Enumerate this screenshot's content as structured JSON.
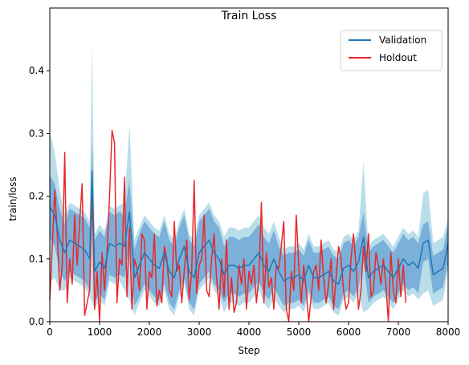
{
  "chart_data": {
    "type": "line",
    "title": "Train Loss",
    "xlabel": "Step",
    "ylabel": "train/loss",
    "xlim": [
      0,
      8000
    ],
    "ylim": [
      0,
      0.5
    ],
    "xticks": [
      0,
      1000,
      2000,
      3000,
      4000,
      5000,
      6000,
      7000,
      8000
    ],
    "yticks": [
      0.0,
      0.1,
      0.2,
      0.3,
      0.4
    ],
    "ytick_labels": [
      "0.0",
      "0.1",
      "0.2",
      "0.3",
      "0.4"
    ],
    "grid": false,
    "legend_position": "top-right",
    "colors": {
      "validation": "#1f77b4",
      "holdout": "#e8282b",
      "band_inner": "#6fa8d6",
      "band_outer": "#add8e6"
    },
    "series": [
      {
        "name": "Validation",
        "x": [
          0,
          100,
          200,
          300,
          400,
          500,
          600,
          700,
          800,
          850,
          900,
          1000,
          1100,
          1200,
          1300,
          1400,
          1500,
          1600,
          1700,
          1800,
          1900,
          2000,
          2100,
          2200,
          2300,
          2400,
          2500,
          2600,
          2700,
          2800,
          2900,
          3000,
          3100,
          3200,
          3300,
          3400,
          3500,
          3600,
          3700,
          3800,
          3900,
          4000,
          4100,
          4200,
          4300,
          4400,
          4500,
          4600,
          4700,
          4800,
          4900,
          5000,
          5100,
          5200,
          5300,
          5400,
          5500,
          5600,
          5700,
          5800,
          5900,
          6000,
          6100,
          6200,
          6300,
          6400,
          6500,
          6600,
          6700,
          6800,
          6900,
          7000,
          7100,
          7200,
          7300,
          7400,
          7500,
          7600,
          7700,
          7800,
          7900,
          8000
        ],
        "y": [
          0.183,
          0.17,
          0.13,
          0.11,
          0.13,
          0.125,
          0.12,
          0.115,
          0.1,
          0.24,
          0.08,
          0.095,
          0.085,
          0.125,
          0.12,
          0.125,
          0.12,
          0.175,
          0.07,
          0.09,
          0.11,
          0.1,
          0.09,
          0.085,
          0.11,
          0.08,
          0.07,
          0.1,
          0.12,
          0.08,
          0.07,
          0.11,
          0.12,
          0.13,
          0.11,
          0.1,
          0.075,
          0.09,
          0.09,
          0.085,
          0.09,
          0.09,
          0.1,
          0.11,
          0.09,
          0.08,
          0.1,
          0.08,
          0.065,
          0.07,
          0.07,
          0.075,
          0.065,
          0.09,
          0.07,
          0.07,
          0.075,
          0.08,
          0.065,
          0.06,
          0.085,
          0.09,
          0.08,
          0.095,
          0.135,
          0.07,
          0.08,
          0.085,
          0.09,
          0.08,
          0.07,
          0.085,
          0.1,
          0.09,
          0.095,
          0.085,
          0.125,
          0.13,
          0.075,
          0.08,
          0.085,
          0.125
        ],
        "band_inner": [
          0.05,
          0.05,
          0.05,
          0.045,
          0.05,
          0.05,
          0.05,
          0.05,
          0.05,
          0.05,
          0.05,
          0.05,
          0.05,
          0.05,
          0.05,
          0.05,
          0.05,
          0.05,
          0.045,
          0.05,
          0.05,
          0.05,
          0.05,
          0.05,
          0.05,
          0.05,
          0.05,
          0.05,
          0.05,
          0.05,
          0.05,
          0.05,
          0.05,
          0.05,
          0.05,
          0.05,
          0.045,
          0.045,
          0.045,
          0.045,
          0.045,
          0.045,
          0.045,
          0.045,
          0.045,
          0.045,
          0.045,
          0.04,
          0.04,
          0.04,
          0.04,
          0.04,
          0.04,
          0.04,
          0.04,
          0.04,
          0.04,
          0.04,
          0.04,
          0.04,
          0.04,
          0.04,
          0.04,
          0.04,
          0.04,
          0.04,
          0.04,
          0.04,
          0.04,
          0.04,
          0.04,
          0.04,
          0.04,
          0.04,
          0.04,
          0.04,
          0.03,
          0.03,
          0.03,
          0.03,
          0.03,
          0.03
        ],
        "band_outer": [
          0.12,
          0.1,
          0.08,
          0.06,
          0.06,
          0.06,
          0.06,
          0.06,
          0.06,
          0.21,
          0.06,
          0.06,
          0.06,
          0.06,
          0.06,
          0.06,
          0.07,
          0.14,
          0.06,
          0.06,
          0.06,
          0.06,
          0.06,
          0.06,
          0.06,
          0.06,
          0.06,
          0.06,
          0.06,
          0.06,
          0.06,
          0.06,
          0.06,
          0.06,
          0.06,
          0.06,
          0.06,
          0.06,
          0.06,
          0.06,
          0.06,
          0.06,
          0.06,
          0.06,
          0.06,
          0.06,
          0.06,
          0.055,
          0.05,
          0.05,
          0.05,
          0.05,
          0.05,
          0.05,
          0.05,
          0.05,
          0.05,
          0.05,
          0.05,
          0.05,
          0.05,
          0.05,
          0.05,
          0.05,
          0.12,
          0.05,
          0.05,
          0.05,
          0.05,
          0.05,
          0.05,
          0.05,
          0.05,
          0.05,
          0.05,
          0.05,
          0.08,
          0.08,
          0.05,
          0.05,
          0.05,
          0.04
        ]
      },
      {
        "name": "Holdout",
        "x": [
          0,
          50,
          100,
          150,
          200,
          250,
          300,
          350,
          400,
          450,
          500,
          550,
          600,
          650,
          700,
          750,
          800,
          850,
          900,
          950,
          1000,
          1050,
          1100,
          1150,
          1200,
          1250,
          1300,
          1350,
          1400,
          1450,
          1500,
          1550,
          1600,
          1650,
          1700,
          1750,
          1800,
          1850,
          1900,
          1950,
          2000,
          2050,
          2100,
          2150,
          2200,
          2250,
          2300,
          2350,
          2400,
          2450,
          2500,
          2550,
          2600,
          2650,
          2700,
          2750,
          2800,
          2850,
          2900,
          2950,
          3000,
          3050,
          3100,
          3150,
          3200,
          3250,
          3300,
          3350,
          3400,
          3450,
          3500,
          3550,
          3600,
          3650,
          3700,
          3750,
          3800,
          3850,
          3900,
          3950,
          4000,
          4050,
          4100,
          4150,
          4200,
          4250,
          4300,
          4350,
          4400,
          4450,
          4500,
          4550,
          4600,
          4650,
          4700,
          4750,
          4800,
          4850,
          4900,
          4950,
          5000,
          5050,
          5100,
          5150,
          5200,
          5250,
          5300,
          5350,
          5400,
          5450,
          5500,
          5550,
          5600,
          5650,
          5700,
          5750,
          5800,
          5850,
          5900,
          5950,
          6000,
          6050,
          6100,
          6150,
          6200,
          6250,
          6300,
          6350,
          6400,
          6450,
          6500,
          6550,
          6600,
          6650,
          6700,
          6750,
          6800,
          6850,
          6900,
          6950,
          7000,
          7050,
          7100,
          7150
        ],
        "y": [
          0.035,
          0.12,
          0.21,
          0.14,
          0.05,
          0.09,
          0.27,
          0.03,
          0.1,
          0.06,
          0.17,
          0.09,
          0.16,
          0.22,
          0.01,
          0.03,
          0.05,
          0.21,
          0.02,
          0.08,
          0.0,
          0.11,
          0.05,
          0.11,
          0.2,
          0.305,
          0.285,
          0.03,
          0.1,
          0.09,
          0.23,
          0.04,
          0.15,
          0.02,
          0.1,
          0.085,
          0.05,
          0.14,
          0.13,
          0.02,
          0.08,
          0.07,
          0.14,
          0.025,
          0.05,
          0.03,
          0.12,
          0.1,
          0.05,
          0.04,
          0.16,
          0.08,
          0.09,
          0.03,
          0.08,
          0.13,
          0.035,
          0.08,
          0.225,
          0.045,
          0.09,
          0.1,
          0.17,
          0.05,
          0.04,
          0.1,
          0.14,
          0.07,
          0.02,
          0.1,
          0.04,
          0.13,
          0.02,
          0.07,
          0.015,
          0.03,
          0.09,
          0.06,
          0.1,
          0.02,
          0.08,
          0.06,
          0.09,
          0.03,
          0.07,
          0.19,
          0.03,
          0.11,
          0.055,
          0.07,
          0.02,
          0.09,
          0.085,
          0.12,
          0.16,
          0.02,
          0.0,
          0.08,
          0.05,
          0.17,
          0.09,
          0.03,
          0.09,
          0.05,
          0.0,
          0.04,
          0.08,
          0.09,
          0.05,
          0.13,
          0.07,
          0.03,
          0.06,
          0.1,
          0.02,
          0.07,
          0.12,
          0.1,
          0.05,
          0.02,
          0.03,
          0.1,
          0.14,
          0.09,
          0.02,
          0.05,
          0.12,
          0.08,
          0.14,
          0.04,
          0.05,
          0.11,
          0.09,
          0.06,
          0.1,
          0.06,
          0.0,
          0.11,
          0.05,
          0.03,
          0.1,
          0.04,
          0.09,
          0.03
        ]
      }
    ]
  }
}
